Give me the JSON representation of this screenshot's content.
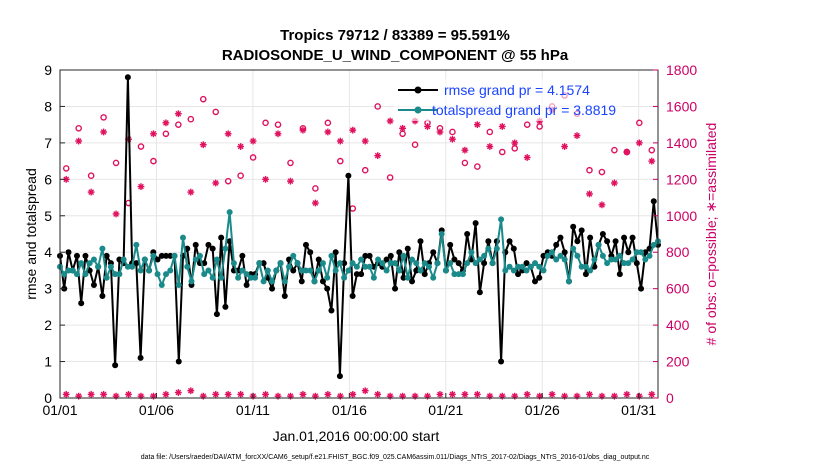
{
  "chart_data": {
    "type": "line",
    "title_line1": "Tropics 79712 / 83389 = 95.591%",
    "title_line2": "RADIOSONDE_U_WIND_COMPONENT @ 55 hPa",
    "xlabel": "Jan.01,2016 00:00:00 start",
    "ylabel": "rmse and totalspread",
    "y2label": "# of obs: o=possible; ∗=assimilated",
    "footer": "data file: /Users/raeder/DAI/ATM_forcXX/CAM6_setup/f.e21.FHIST_BGC.f09_025.CAM6assim.011/Diags_NTrS_2017-02/Diags_NTrS_2016-01/obs_diag_output.nc",
    "xlim": [
      1,
      32
    ],
    "ylim": [
      0,
      9
    ],
    "y2lim": [
      0,
      1800
    ],
    "xticks": [
      1,
      6,
      11,
      16,
      21,
      26,
      31
    ],
    "xtick_labels": [
      "01/01",
      "01/06",
      "01/11",
      "01/16",
      "01/21",
      "01/26",
      "01/31"
    ],
    "yticks": [
      "0",
      "1",
      "2",
      "3",
      "4",
      "5",
      "6",
      "7",
      "8",
      "9"
    ],
    "y2ticks": [
      "0",
      "200",
      "400",
      "600",
      "800",
      "1000",
      "1200",
      "1400",
      "1600",
      "1800"
    ],
    "legend": [
      {
        "name": "rmse grand pr = 4.1574",
        "color": "#000000"
      },
      {
        "name": "totalspread grand pr = 3.8819",
        "color": "#1a8a8a"
      }
    ],
    "colors": {
      "rmse": "#000000",
      "spread": "#1a8a8a",
      "obs": "#e0115f",
      "grid": "#e6e6e6"
    },
    "rmse_values": [
      3.9,
      3.0,
      4.0,
      3.5,
      3.9,
      2.6,
      3.9,
      3.5,
      3.1,
      3.6,
      2.8,
      3.9,
      3.7,
      0.9,
      3.8,
      3.7,
      8.8,
      3.7,
      3.7,
      1.1,
      3.8,
      3.5,
      4.0,
      3.8,
      3.9,
      3.9,
      3.9,
      3.9,
      1.0,
      3.9,
      4.1,
      3.1,
      4.2,
      3.7,
      3.7,
      4.2,
      4.1,
      2.3,
      4.4,
      2.5,
      4.3,
      3.5,
      3.5,
      3.9,
      3.1,
      3.4,
      3.4,
      3.7,
      3.7,
      3.3,
      3.0,
      3.5,
      3.7,
      2.8,
      3.8,
      3.5,
      3.7,
      3.2,
      4.2,
      4.0,
      3.2,
      3.8,
      3.2,
      3.0,
      2.4,
      4.0,
      0.6,
      3.7,
      6.1,
      2.8,
      3.4,
      3.4,
      3.9,
      3.9,
      3.6,
      3.7,
      3.6,
      3.8,
      3.9,
      3.0,
      4.0,
      3.3,
      4.1,
      3.2,
      3.5,
      4.3,
      3.4,
      3.7,
      4.0,
      3.7,
      4.6,
      3.5,
      4.2,
      3.8,
      3.7,
      3.5,
      4.5,
      3.8,
      4.8,
      2.9,
      3.7,
      4.3,
      3.7,
      4.3,
      1.0,
      4.0,
      4.3,
      4.1,
      3.4,
      3.5,
      3.7,
      3.6,
      3.2,
      3.3,
      3.9,
      4.0,
      3.9,
      4.2,
      4.4,
      4.0,
      3.2,
      4.7,
      4.3,
      4.6,
      3.4,
      4.4,
      3.6,
      4.2,
      4.5,
      4.3,
      3.9,
      4.3,
      3.4,
      4.4,
      4.0,
      4.4,
      3.7,
      3.0,
      4.0,
      4.1,
      5.4,
      4.2
    ],
    "spread_values": [
      3.6,
      3.4,
      3.5,
      3.5,
      3.4,
      3.7,
      3.4,
      3.7,
      3.8,
      3.6,
      4.1,
      3.3,
      3.6,
      3.4,
      3.4,
      3.8,
      3.6,
      3.6,
      4.2,
      3.5,
      3.8,
      3.5,
      3.9,
      3.4,
      3.1,
      3.4,
      3.5,
      3.9,
      3.1,
      4.4,
      3.6,
      3.2,
      3.8,
      3.9,
      3.4,
      3.5,
      3.3,
      3.8,
      3.3,
      4.1,
      5.1,
      3.7,
      3.3,
      3.5,
      3.4,
      3.3,
      3.3,
      3.7,
      3.2,
      3.5,
      3.2,
      3.5,
      3.7,
      3.2,
      3.6,
      3.9,
      3.7,
      3.5,
      3.5,
      3.5,
      3.2,
      3.5,
      3.7,
      3.3,
      3.9,
      3.5,
      3.7,
      3.3,
      3.5,
      3.7,
      3.6,
      3.8,
      3.6,
      3.6,
      3.3,
      3.8,
      3.7,
      3.5,
      3.7,
      3.7,
      3.5,
      3.9,
      3.3,
      3.8,
      3.7,
      3.5,
      3.7,
      3.6,
      3.3,
      3.7,
      4.5,
      3.5,
      3.7,
      3.4,
      3.4,
      3.4,
      3.7,
      4.0,
      3.7,
      3.8,
      3.9,
      4.1,
      3.7,
      4.1,
      4.9,
      3.5,
      3.6,
      3.5,
      3.6,
      3.6,
      3.5,
      3.6,
      3.7,
      3.6,
      3.5,
      3.9,
      4.0,
      3.8,
      3.9,
      3.8,
      3.2,
      4.1,
      3.9,
      3.6,
      3.6,
      3.5,
      3.8,
      4.2,
      3.9,
      3.7,
      3.8,
      3.8,
      3.9,
      3.7,
      3.7,
      3.8,
      4.0,
      4.0,
      3.8,
      3.9,
      4.2,
      4.3
    ],
    "possible_values": [
      1260,
      1480,
      1220,
      1540,
      1290,
      1070,
      1380,
      1300,
      1450,
      1500,
      1530,
      1640,
      1570,
      1190,
      1220,
      1320,
      1510,
      1500,
      1290,
      1480,
      1150,
      1510,
      1300,
      1040,
      1250,
      1600,
      1210,
      1450,
      1390,
      1510,
      1480,
      1460,
      1290,
      1270,
      1460,
      1350,
      1370,
      1500,
      1490,
      1600,
      1660,
      1560,
      1250,
      1240,
      1360,
      1350,
      1510,
      1360
    ],
    "assimilated_values": [
      1200,
      1410,
      1130,
      1460,
      1010,
      1420,
      1160,
      1450,
      1510,
      1560,
      1130,
      1390,
      1180,
      1450,
      1380,
      1410,
      1200,
      1450,
      1190,
      1470,
      1070,
      1460,
      1410,
      1470,
      1410,
      1330,
      1520,
      1480,
      1520,
      1490,
      1460,
      1420,
      1360,
      1500,
      1380,
      1490,
      1400,
      1320,
      1520,
      1580,
      1380,
      1440,
      1120,
      1060,
      1180,
      1350,
      1400,
      1300
    ],
    "assimilated_low": [
      20,
      10,
      20,
      20,
      10,
      20,
      10,
      10,
      20,
      30,
      40,
      10,
      20,
      20,
      20,
      10,
      20,
      10,
      10,
      20,
      10,
      20,
      10,
      20,
      40,
      20,
      10,
      10,
      10,
      10,
      20,
      20,
      20,
      20,
      10,
      10,
      10,
      20,
      10,
      20,
      10,
      10,
      20,
      10,
      10,
      20,
      10,
      20
    ]
  }
}
